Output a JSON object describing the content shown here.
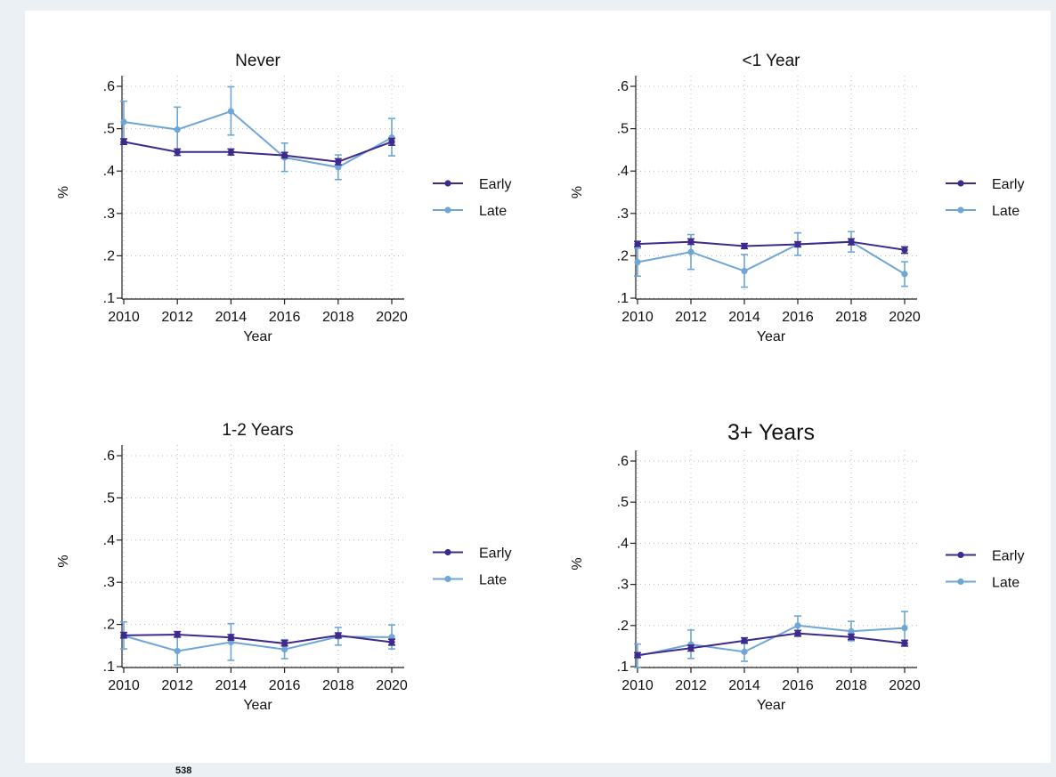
{
  "page": {
    "footnote": "538"
  },
  "colors": {
    "early": "#3d2a8c",
    "late": "#6fa6d6",
    "grid": "#b8b8b8",
    "axis": "#222222"
  },
  "chart_data": [
    {
      "type": "line",
      "title": "Never",
      "xlabel": "Year",
      "ylabel": "%",
      "x": [
        2010,
        2012,
        2014,
        2016,
        2018,
        2020
      ],
      "ylim": [
        0.1,
        0.6
      ],
      "yticks": [
        ".1",
        ".2",
        ".3",
        ".4",
        ".5",
        ".6"
      ],
      "grid": true,
      "legend": "right",
      "series": [
        {
          "name": "Early",
          "values": [
            0.469,
            0.445,
            0.445,
            0.437,
            0.422,
            0.469
          ],
          "lower": [
            0.463,
            0.437,
            0.438,
            0.431,
            0.415,
            0.461
          ],
          "upper": [
            0.476,
            0.452,
            0.452,
            0.444,
            0.429,
            0.477
          ]
        },
        {
          "name": "Late",
          "values": [
            0.516,
            0.498,
            0.541,
            0.432,
            0.409,
            0.479
          ],
          "lower": [
            0.468,
            0.445,
            0.485,
            0.399,
            0.38,
            0.436
          ],
          "upper": [
            0.565,
            0.551,
            0.599,
            0.466,
            0.438,
            0.524
          ]
        }
      ]
    },
    {
      "type": "line",
      "title": "<1 Year",
      "xlabel": "Year",
      "ylabel": "%",
      "x": [
        2010,
        2012,
        2014,
        2016,
        2018,
        2020
      ],
      "ylim": [
        0.1,
        0.6
      ],
      "yticks": [
        ".1",
        ".2",
        ".3",
        ".4",
        ".5",
        ".6"
      ],
      "grid": true,
      "legend": "right",
      "series": [
        {
          "name": "Early",
          "values": [
            0.228,
            0.233,
            0.223,
            0.227,
            0.233,
            0.214
          ],
          "lower": [
            0.222,
            0.227,
            0.217,
            0.221,
            0.226,
            0.206
          ],
          "upper": [
            0.234,
            0.24,
            0.229,
            0.233,
            0.24,
            0.221
          ]
        },
        {
          "name": "Late",
          "values": [
            0.185,
            0.209,
            0.164,
            0.227,
            0.233,
            0.157
          ],
          "lower": [
            0.152,
            0.168,
            0.126,
            0.201,
            0.209,
            0.128
          ],
          "upper": [
            0.218,
            0.25,
            0.203,
            0.254,
            0.257,
            0.186
          ]
        }
      ]
    },
    {
      "type": "line",
      "title": "1-2 Years",
      "xlabel": "Year",
      "ylabel": "%",
      "x": [
        2010,
        2012,
        2014,
        2016,
        2018,
        2020
      ],
      "ylim": [
        0.1,
        0.6
      ],
      "yticks": [
        ".1",
        ".2",
        ".3",
        ".4",
        ".5",
        ".6"
      ],
      "grid": true,
      "legend": "right",
      "series": [
        {
          "name": "Early",
          "values": [
            0.174,
            0.176,
            0.169,
            0.155,
            0.174,
            0.158
          ],
          "lower": [
            0.168,
            0.17,
            0.163,
            0.149,
            0.168,
            0.151
          ],
          "upper": [
            0.181,
            0.183,
            0.176,
            0.162,
            0.18,
            0.165
          ]
        },
        {
          "name": "Late",
          "values": [
            0.173,
            0.137,
            0.158,
            0.141,
            0.171,
            0.17
          ],
          "lower": [
            0.142,
            0.104,
            0.115,
            0.119,
            0.151,
            0.142
          ],
          "upper": [
            0.206,
            0.17,
            0.202,
            0.164,
            0.193,
            0.199
          ]
        }
      ]
    },
    {
      "type": "line",
      "title": "3+ Years",
      "xlabel": "Year",
      "ylabel": "%",
      "x": [
        2010,
        2012,
        2014,
        2016,
        2018,
        2020
      ],
      "ylim": [
        0.1,
        0.6
      ],
      "yticks": [
        ".1",
        ".2",
        ".3",
        ".4",
        ".5",
        ".6"
      ],
      "grid": true,
      "legend": "right",
      "series": [
        {
          "name": "Early",
          "values": [
            0.128,
            0.145,
            0.163,
            0.181,
            0.172,
            0.157
          ],
          "lower": [
            0.122,
            0.138,
            0.157,
            0.174,
            0.166,
            0.15
          ],
          "upper": [
            0.134,
            0.152,
            0.17,
            0.188,
            0.179,
            0.164
          ]
        },
        {
          "name": "Late",
          "values": [
            0.126,
            0.154,
            0.136,
            0.2,
            0.186,
            0.194
          ],
          "lower": [
            0.098,
            0.12,
            0.113,
            0.176,
            0.163,
            0.155
          ],
          "upper": [
            0.155,
            0.189,
            0.16,
            0.223,
            0.21,
            0.234
          ]
        }
      ]
    }
  ]
}
